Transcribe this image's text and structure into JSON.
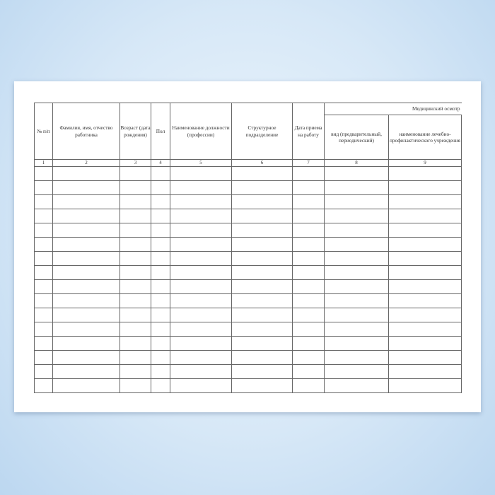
{
  "document": {
    "columns": [
      {
        "label": "№ п/п",
        "number": "1"
      },
      {
        "label": "Фамилия, имя, отчество работника",
        "number": "2"
      },
      {
        "label": "Возраст (дата рождения)",
        "number": "3"
      },
      {
        "label": "Пол",
        "number": "4"
      },
      {
        "label": "Наименование должности (профессии)",
        "number": "5"
      },
      {
        "label": "Структурное подразделение",
        "number": "6"
      },
      {
        "label": "Дата приема на работу",
        "number": "7"
      },
      {
        "label": "вид (предварительный, периодический)",
        "number": "8"
      },
      {
        "label": "наименование лечебно-профилактического учреждения",
        "number": "9"
      }
    ],
    "group_header": "Медицинский осмотр",
    "empty_rows": 16
  }
}
